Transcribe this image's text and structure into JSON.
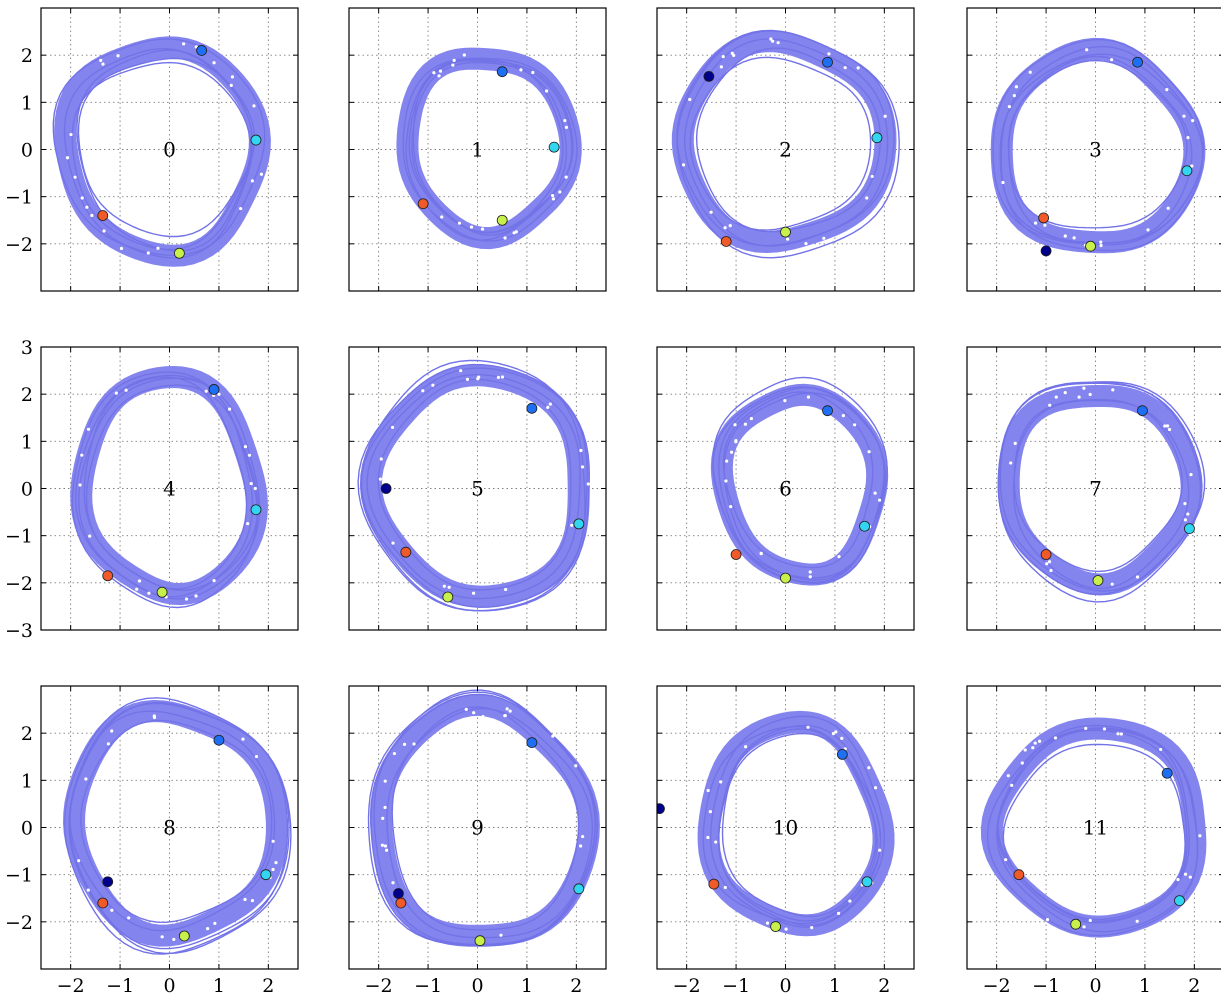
{
  "chart_data": {
    "type": "line",
    "layout": "small multiples, 3 rows x 4 columns, shared axes",
    "xlim": [
      -2.6,
      2.6
    ],
    "ylim": [
      -3,
      3
    ],
    "x_ticks": [
      "-2",
      "-1",
      "0",
      "1",
      "2"
    ],
    "y_ticks": [
      "-3",
      "-2",
      "-1",
      "0",
      "1",
      "2",
      "3"
    ],
    "grid": true,
    "band_color": "#8484ee",
    "marker_colors": [
      "#00008b",
      "#1f6ff5",
      "#33d6f0",
      "#c8f04a",
      "#f05a28"
    ],
    "panels": [
      {
        "label": "0",
        "ellipse": {
          "cx": -0.15,
          "cy": 0.0,
          "rx": 1.95,
          "ry": 2.2
        },
        "markers": [
          {
            "x": 0.65,
            "y": 2.1,
            "color": "#1f6ff5"
          },
          {
            "x": 1.75,
            "y": 0.2,
            "color": "#33d6f0"
          },
          {
            "x": 0.2,
            "y": -2.2,
            "color": "#c8f04a"
          },
          {
            "x": -1.35,
            "y": -1.4,
            "color": "#f05a28"
          }
        ]
      },
      {
        "label": "1",
        "ellipse": {
          "cx": 0.2,
          "cy": 0.1,
          "rx": 1.65,
          "ry": 1.9
        },
        "markers": [
          {
            "x": 0.5,
            "y": 1.65,
            "color": "#1f6ff5"
          },
          {
            "x": 1.55,
            "y": 0.05,
            "color": "#33d6f0"
          },
          {
            "x": 0.5,
            "y": -1.5,
            "color": "#c8f04a"
          },
          {
            "x": -1.1,
            "y": -1.15,
            "color": "#f05a28"
          }
        ]
      },
      {
        "label": "2",
        "ellipse": {
          "cx": -0.05,
          "cy": 0.15,
          "rx": 2.05,
          "ry": 2.1
        },
        "markers": [
          {
            "x": -1.55,
            "y": 1.55,
            "color": "#00008b"
          },
          {
            "x": 0.85,
            "y": 1.85,
            "color": "#1f6ff5"
          },
          {
            "x": 1.85,
            "y": 0.25,
            "color": "#33d6f0"
          },
          {
            "x": 0.0,
            "y": -1.75,
            "color": "#c8f04a"
          },
          {
            "x": -1.2,
            "y": -1.95,
            "color": "#f05a28"
          }
        ]
      },
      {
        "label": "3",
        "ellipse": {
          "cx": 0.0,
          "cy": 0.0,
          "rx": 1.95,
          "ry": 2.05
        },
        "markers": [
          {
            "x": 0.85,
            "y": 1.85,
            "color": "#1f6ff5"
          },
          {
            "x": 1.85,
            "y": -0.45,
            "color": "#33d6f0"
          },
          {
            "x": -0.1,
            "y": -2.05,
            "color": "#c8f04a"
          },
          {
            "x": -1.05,
            "y": -1.45,
            "color": "#f05a28"
          },
          {
            "x": -1.0,
            "y": -2.15,
            "color": "#00008b"
          }
        ]
      },
      {
        "label": "4",
        "ellipse": {
          "cx": 0.0,
          "cy": 0.05,
          "rx": 1.75,
          "ry": 2.3
        },
        "markers": [
          {
            "x": 0.9,
            "y": 2.1,
            "color": "#1f6ff5"
          },
          {
            "x": 1.75,
            "y": -0.45,
            "color": "#33d6f0"
          },
          {
            "x": -0.15,
            "y": -2.2,
            "color": "#c8f04a"
          },
          {
            "x": -1.25,
            "y": -1.85,
            "color": "#f05a28"
          }
        ]
      },
      {
        "label": "5",
        "ellipse": {
          "cx": 0.05,
          "cy": 0.05,
          "rx": 2.1,
          "ry": 2.35
        },
        "markers": [
          {
            "x": 1.1,
            "y": 1.7,
            "color": "#1f6ff5"
          },
          {
            "x": -1.85,
            "y": 0.0,
            "color": "#00008b"
          },
          {
            "x": 2.05,
            "y": -0.75,
            "color": "#33d6f0"
          },
          {
            "x": -0.6,
            "y": -2.3,
            "color": "#c8f04a"
          },
          {
            "x": -1.45,
            "y": -1.35,
            "color": "#f05a28"
          }
        ]
      },
      {
        "label": "6",
        "ellipse": {
          "cx": 0.3,
          "cy": 0.1,
          "rx": 1.55,
          "ry": 1.9
        },
        "markers": [
          {
            "x": 0.85,
            "y": 1.65,
            "color": "#1f6ff5"
          },
          {
            "x": 1.6,
            "y": -0.8,
            "color": "#33d6f0"
          },
          {
            "x": 0.0,
            "y": -1.9,
            "color": "#c8f04a"
          },
          {
            "x": -1.0,
            "y": -1.4,
            "color": "#f05a28"
          }
        ]
      },
      {
        "label": "7",
        "ellipse": {
          "cx": 0.05,
          "cy": 0.05,
          "rx": 1.85,
          "ry": 2.0
        },
        "markers": [
          {
            "x": 0.95,
            "y": 1.65,
            "color": "#1f6ff5"
          },
          {
            "x": 1.9,
            "y": -0.85,
            "color": "#33d6f0"
          },
          {
            "x": 0.05,
            "y": -1.95,
            "color": "#c8f04a"
          },
          {
            "x": -1.0,
            "y": -1.4,
            "color": "#f05a28"
          }
        ]
      },
      {
        "label": "8",
        "ellipse": {
          "cx": 0.1,
          "cy": 0.1,
          "rx": 2.05,
          "ry": 2.35
        },
        "markers": [
          {
            "x": 1.0,
            "y": 1.85,
            "color": "#1f6ff5"
          },
          {
            "x": 1.95,
            "y": -1.0,
            "color": "#33d6f0"
          },
          {
            "x": 0.3,
            "y": -2.3,
            "color": "#c8f04a"
          },
          {
            "x": -1.35,
            "y": -1.6,
            "color": "#f05a28"
          },
          {
            "x": -1.25,
            "y": -1.15,
            "color": "#00008b"
          }
        ]
      },
      {
        "label": "9",
        "ellipse": {
          "cx": 0.1,
          "cy": 0.05,
          "rx": 2.1,
          "ry": 2.45
        },
        "markers": [
          {
            "x": 1.1,
            "y": 1.8,
            "color": "#1f6ff5"
          },
          {
            "x": 2.05,
            "y": -1.3,
            "color": "#33d6f0"
          },
          {
            "x": 0.05,
            "y": -2.4,
            "color": "#c8f04a"
          },
          {
            "x": -1.55,
            "y": -1.6,
            "color": "#f05a28"
          },
          {
            "x": -1.6,
            "y": -1.4,
            "color": "#00008b"
          }
        ]
      },
      {
        "label": "10",
        "ellipse": {
          "cx": 0.2,
          "cy": 0.05,
          "rx": 1.75,
          "ry": 2.15
        },
        "markers": [
          {
            "x": -2.55,
            "y": 0.4,
            "color": "#00008b"
          },
          {
            "x": 1.15,
            "y": 1.55,
            "color": "#1f6ff5"
          },
          {
            "x": 1.65,
            "y": -1.15,
            "color": "#33d6f0"
          },
          {
            "x": -0.2,
            "y": -2.1,
            "color": "#c8f04a"
          },
          {
            "x": -1.45,
            "y": -1.2,
            "color": "#f05a28"
          }
        ]
      },
      {
        "label": "11",
        "ellipse": {
          "cx": 0.05,
          "cy": 0.0,
          "rx": 2.05,
          "ry": 2.1
        },
        "markers": [
          {
            "x": 1.45,
            "y": 1.15,
            "color": "#1f6ff5"
          },
          {
            "x": 1.7,
            "y": -1.55,
            "color": "#33d6f0"
          },
          {
            "x": -0.4,
            "y": -2.05,
            "color": "#c8f04a"
          },
          {
            "x": -1.55,
            "y": -1.0,
            "color": "#f05a28"
          }
        ]
      }
    ]
  }
}
